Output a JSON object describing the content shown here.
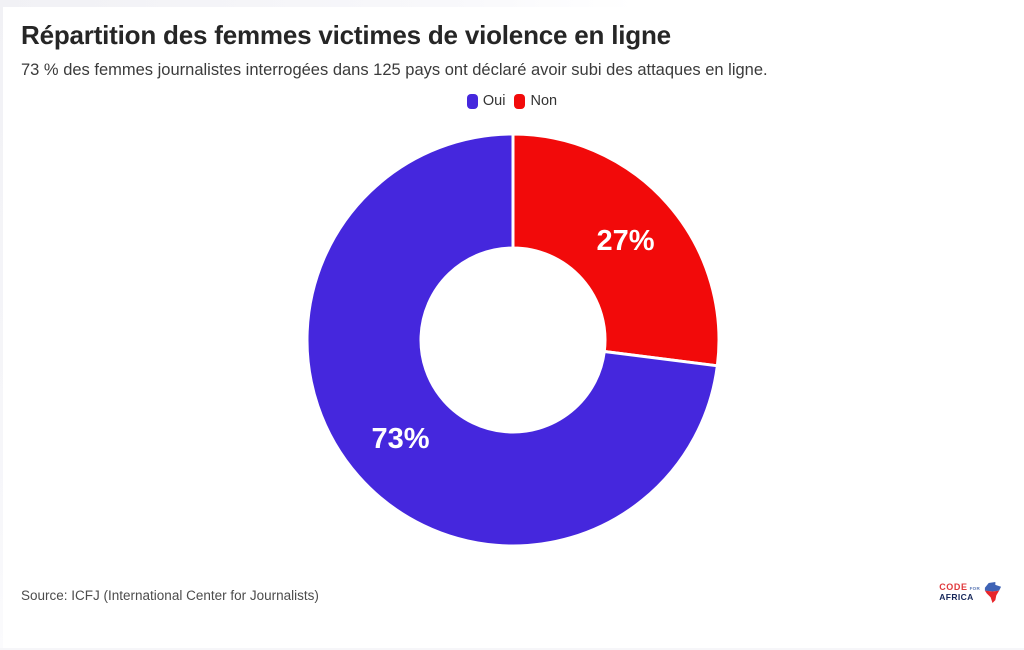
{
  "chart_data": {
    "type": "pie",
    "variant": "donut",
    "title": "Répartition des femmes victimes de violence en ligne",
    "subtitle": "73 % des femmes journalistes interrogées dans 125 pays ont déclaré avoir subi des attaques en ligne.",
    "source": "Source: ICFJ (International Center for Journalists)",
    "categories": [
      "Oui",
      "Non"
    ],
    "values": [
      73,
      27
    ],
    "unit": "%",
    "data_labels": [
      "73%",
      "27%"
    ],
    "colors": [
      "#4527dd",
      "#f20a0a"
    ],
    "label_text_color": "#ffffff",
    "slice_gap_color": "#ffffff",
    "legend": {
      "position": "top-center",
      "items": [
        {
          "label": "Oui",
          "color": "#4527dd"
        },
        {
          "label": "Non",
          "color": "#f20a0a"
        }
      ]
    },
    "geometry": {
      "outer_radius": 206,
      "inner_radius": 92,
      "label_radius": 150,
      "start_angle_deg": 0,
      "direction": "counterclockwise",
      "gap_stroke_width": 3
    }
  },
  "branding": {
    "logo": {
      "word1": "CODE",
      "word2": "FOR",
      "word3": "AFRICA",
      "word1_color": "#e0393c",
      "word2_color": "#5b77b4",
      "word3_color": "#16275a",
      "map_top_color": "#3f63b5",
      "map_bottom_color": "#e8262b"
    }
  }
}
